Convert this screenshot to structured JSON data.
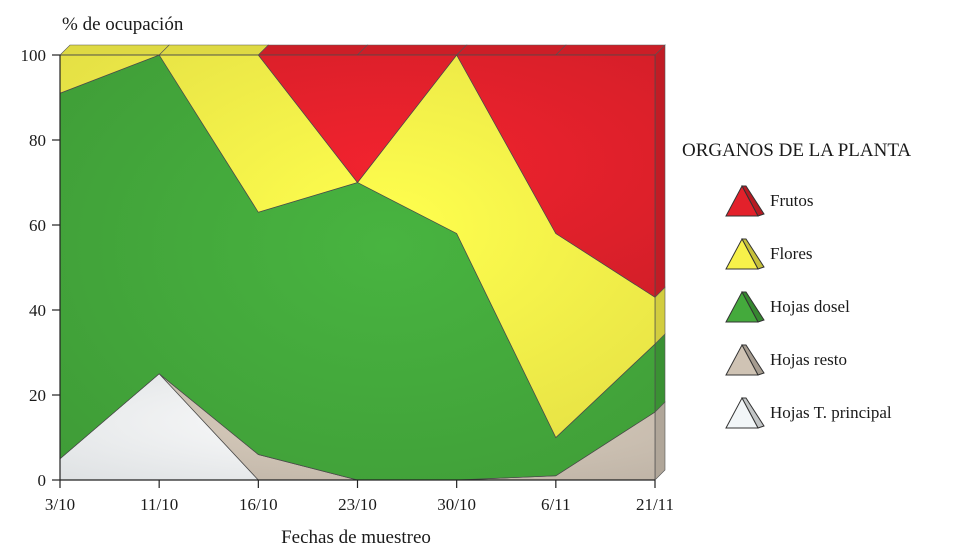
{
  "chart_data": {
    "type": "area",
    "stacked": true,
    "ylabel": "% de ocupación",
    "xlabel": "Fechas de muestreo",
    "categories": [
      "3/10",
      "11/10",
      "16/10",
      "23/10",
      "30/10",
      "6/11",
      "21/11"
    ],
    "ylim": [
      0,
      100
    ],
    "yticks": [
      0,
      20,
      40,
      60,
      80,
      100
    ],
    "legend_title": "ORGANOS DE LA PLANTA",
    "legend_position": "right",
    "series": [
      {
        "name": "Hojas T. principal",
        "color": "#f2f6f8",
        "values": [
          5,
          25,
          0,
          0,
          0,
          0,
          0
        ]
      },
      {
        "name": "Hojas resto",
        "color": "#cfc3b4",
        "values": [
          0,
          0,
          6,
          0,
          0,
          1,
          16
        ]
      },
      {
        "name": "Hojas dosel",
        "color": "#44aa3c",
        "values": [
          86,
          75,
          57,
          70,
          58,
          9,
          16
        ]
      },
      {
        "name": "Flores",
        "color": "#f7f14a",
        "values": [
          9,
          0,
          37,
          0,
          42,
          48,
          11
        ]
      },
      {
        "name": "Frutos",
        "color": "#e3212b",
        "values": [
          0,
          0,
          0,
          30,
          0,
          42,
          57
        ]
      }
    ]
  }
}
